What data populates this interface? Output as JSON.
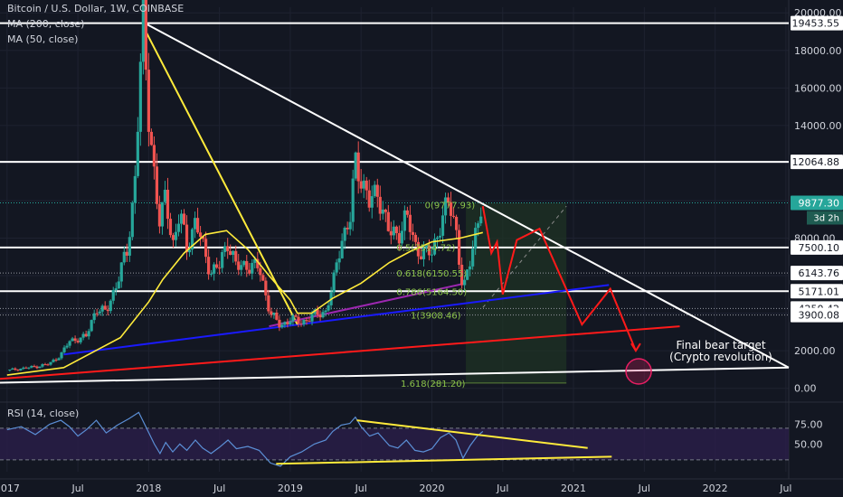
{
  "header": {
    "symbol_line": "Bitcoin / U.S. Dollar, 1W, COINBASE",
    "ma200_label": "MA (200, close)",
    "ma50_label": "MA (50, close)"
  },
  "rsi_panel": {
    "label": "RSI (14, close)",
    "ticks": [
      "75.00",
      "50.00"
    ],
    "tick_values": [
      75,
      50
    ],
    "band": [
      30,
      70
    ]
  },
  "annotation": {
    "line1": "Final bear target",
    "line2": "(Crypto revolution)"
  },
  "colors": {
    "background": "#131722",
    "up": "#26a69a",
    "down": "#ef5350",
    "ma50": "#ffeb3b",
    "resistance": "#ffffff",
    "support_blue": "#1a1aff",
    "support_red": "#ff1a1a",
    "purple": "#9c27b0",
    "rsi_line": "#5b8fd6",
    "rsi_band": "#2a1e4a",
    "projection_box": "#1f3324",
    "fib_text": "#8bc34a"
  },
  "chart_data": {
    "type": "candlestick",
    "title": "Bitcoin / U.S. Dollar, 1W, COINBASE",
    "series_names": [
      "MA (200, close)",
      "MA (50, close)"
    ],
    "y_axis": {
      "ticks": [
        0,
        2000,
        4000,
        6000,
        8000,
        10000,
        12000,
        14000,
        16000,
        18000,
        20000
      ],
      "tick_labels": [
        "0.00",
        "2000.00",
        "",
        "",
        "8000.00",
        "",
        "12000.00",
        "14000.00",
        "16000.00",
        "18000.00",
        "20000.00"
      ],
      "range": [
        -400,
        20300
      ]
    },
    "x_axis": {
      "ticks": [
        2017.0,
        2017.5,
        2018.0,
        2018.5,
        2019.0,
        2019.5,
        2020.0,
        2020.5,
        2021.0,
        2021.5,
        2022.0,
        2022.5
      ],
      "tick_labels": [
        "2017",
        "Jul",
        "2018",
        "Jul",
        "2019",
        "Jul",
        "2020",
        "Jul",
        "2021",
        "Jul",
        "2022",
        "Jul"
      ],
      "range": [
        2016.95,
        2022.52
      ]
    },
    "price_levels": [
      {
        "value": 19453.55,
        "label": "19453.55"
      },
      {
        "value": 12064.88,
        "label": "12064.88"
      },
      {
        "value": 9877.3,
        "label": "9877.30",
        "tag": "3d 2h",
        "current": true
      },
      {
        "value": 7500.1,
        "label": "7500.10"
      },
      {
        "value": 6143.76,
        "label": "6143.76"
      },
      {
        "value": 5171.01,
        "label": "5171.01"
      },
      {
        "value": 4250.42,
        "label": "4250.42"
      },
      {
        "value": 3900.08,
        "label": "3900.08"
      }
    ],
    "fib_labels": [
      {
        "text": "0(9777.93)",
        "price": 9777.93,
        "x": 2019.95
      },
      {
        "text": "0.5(7514.72)",
        "price": 7514.72,
        "x": 2019.75
      },
      {
        "text": "0.618(6150.55)",
        "price": 6150.55,
        "x": 2019.75
      },
      {
        "text": "0.786(5164.50)",
        "price": 5164.5,
        "x": 2019.75
      },
      {
        "text": "1(3908.46)",
        "price": 3908.46,
        "x": 2019.85
      },
      {
        "text": "1.618(281.20)",
        "price": 281.2,
        "x": 2019.78
      }
    ],
    "price_path": [
      [
        2017.0,
        950
      ],
      [
        2017.1,
        1050
      ],
      [
        2017.2,
        1150
      ],
      [
        2017.3,
        1300
      ],
      [
        2017.38,
        1800
      ],
      [
        2017.44,
        2500
      ],
      [
        2017.5,
        2650
      ],
      [
        2017.56,
        2750
      ],
      [
        2017.63,
        4300
      ],
      [
        2017.7,
        4000
      ],
      [
        2017.78,
        5800
      ],
      [
        2017.85,
        7300
      ],
      [
        2017.9,
        10800
      ],
      [
        2017.93,
        15500
      ],
      [
        2017.96,
        19400
      ],
      [
        2018.0,
        14500
      ],
      [
        2018.04,
        11500
      ],
      [
        2018.08,
        8500
      ],
      [
        2018.12,
        10400
      ],
      [
        2018.17,
        7600
      ],
      [
        2018.22,
        9300
      ],
      [
        2018.27,
        7500
      ],
      [
        2018.33,
        8900
      ],
      [
        2018.38,
        7600
      ],
      [
        2018.44,
        6200
      ],
      [
        2018.5,
        6500
      ],
      [
        2018.56,
        7900
      ],
      [
        2018.62,
        6400
      ],
      [
        2018.7,
        6600
      ],
      [
        2018.78,
        6400
      ],
      [
        2018.86,
        4000
      ],
      [
        2018.93,
        3300
      ],
      [
        2019.0,
        3700
      ],
      [
        2019.08,
        3500
      ],
      [
        2019.17,
        3900
      ],
      [
        2019.25,
        4100
      ],
      [
        2019.3,
        5400
      ],
      [
        2019.36,
        8000
      ],
      [
        2019.42,
        8800
      ],
      [
        2019.46,
        12000
      ],
      [
        2019.5,
        11300
      ],
      [
        2019.56,
        9800
      ],
      [
        2019.62,
        10500
      ],
      [
        2019.7,
        8200
      ],
      [
        2019.76,
        8200
      ],
      [
        2019.82,
        9200
      ],
      [
        2019.88,
        7600
      ],
      [
        2019.94,
        7200
      ],
      [
        2020.0,
        7200
      ],
      [
        2020.06,
        8800
      ],
      [
        2020.12,
        9900
      ],
      [
        2020.17,
        8600
      ],
      [
        2020.22,
        5000
      ],
      [
        2020.27,
        6800
      ],
      [
        2020.32,
        8900
      ],
      [
        2020.36,
        9877.3
      ]
    ],
    "ma50_path": [
      [
        2017.0,
        700
      ],
      [
        2017.4,
        1100
      ],
      [
        2017.8,
        2700
      ],
      [
        2018.0,
        4600
      ],
      [
        2018.1,
        5800
      ],
      [
        2018.25,
        7200
      ],
      [
        2018.4,
        8200
      ],
      [
        2018.55,
        8400
      ],
      [
        2018.7,
        7400
      ],
      [
        2018.85,
        6000
      ],
      [
        2019.0,
        4700
      ],
      [
        2019.05,
        4000
      ],
      [
        2019.15,
        4000
      ],
      [
        2019.3,
        4800
      ],
      [
        2019.5,
        5600
      ],
      [
        2019.7,
        6700
      ],
      [
        2019.85,
        7300
      ],
      [
        2020.0,
        7800
      ],
      [
        2020.2,
        8000
      ],
      [
        2020.36,
        8300
      ]
    ],
    "trendlines": [
      {
        "name": "resistance-line",
        "color": "#ffffff",
        "points": [
          [
            2017.96,
            19500
          ],
          [
            2022.52,
            1100
          ]
        ]
      },
      {
        "name": "support-white",
        "color": "#ffffff",
        "points": [
          [
            2016.95,
            300
          ],
          [
            2022.52,
            1100
          ]
        ]
      },
      {
        "name": "support-red",
        "color": "#ff1a1a",
        "points": [
          [
            2016.95,
            500
          ],
          [
            2021.75,
            3300
          ]
        ]
      },
      {
        "name": "support-blue",
        "color": "#1a1aff",
        "points": [
          [
            2017.4,
            1800
          ],
          [
            2021.25,
            5500
          ]
        ]
      },
      {
        "name": "yellow-drop",
        "color": "#ffeb3b",
        "points": [
          [
            2017.96,
            19300
          ],
          [
            2019.05,
            3400
          ]
        ]
      },
      {
        "name": "purple-line",
        "color": "#9c27b0",
        "points": [
          [
            2018.85,
            3300
          ],
          [
            2020.24,
            5600
          ]
        ]
      }
    ],
    "projection": [
      [
        2020.36,
        9700
      ],
      [
        2020.42,
        7200
      ],
      [
        2020.46,
        7800
      ],
      [
        2020.5,
        5000
      ],
      [
        2020.6,
        7900
      ],
      [
        2020.76,
        8500
      ],
      [
        2021.06,
        3400
      ],
      [
        2021.26,
        5300
      ],
      [
        2021.44,
        2000
      ]
    ],
    "target_circle": {
      "x": 2021.46,
      "price": 900
    },
    "rsi_path": [
      [
        2017.0,
        68
      ],
      [
        2017.1,
        72
      ],
      [
        2017.2,
        62
      ],
      [
        2017.3,
        75
      ],
      [
        2017.38,
        80
      ],
      [
        2017.44,
        72
      ],
      [
        2017.5,
        60
      ],
      [
        2017.56,
        68
      ],
      [
        2017.63,
        80
      ],
      [
        2017.7,
        64
      ],
      [
        2017.78,
        74
      ],
      [
        2017.86,
        82
      ],
      [
        2017.93,
        90
      ],
      [
        2017.98,
        72
      ],
      [
        2018.04,
        50
      ],
      [
        2018.08,
        38
      ],
      [
        2018.12,
        52
      ],
      [
        2018.17,
        40
      ],
      [
        2018.22,
        50
      ],
      [
        2018.27,
        42
      ],
      [
        2018.33,
        55
      ],
      [
        2018.38,
        45
      ],
      [
        2018.44,
        38
      ],
      [
        2018.5,
        46
      ],
      [
        2018.56,
        55
      ],
      [
        2018.62,
        44
      ],
      [
        2018.7,
        47
      ],
      [
        2018.78,
        42
      ],
      [
        2018.86,
        26
      ],
      [
        2018.93,
        22
      ],
      [
        2019.0,
        34
      ],
      [
        2019.08,
        40
      ],
      [
        2019.17,
        50
      ],
      [
        2019.25,
        55
      ],
      [
        2019.3,
        66
      ],
      [
        2019.36,
        74
      ],
      [
        2019.42,
        76
      ],
      [
        2019.46,
        84
      ],
      [
        2019.5,
        72
      ],
      [
        2019.56,
        60
      ],
      [
        2019.62,
        64
      ],
      [
        2019.7,
        48
      ],
      [
        2019.76,
        45
      ],
      [
        2019.82,
        55
      ],
      [
        2019.88,
        42
      ],
      [
        2019.94,
        40
      ],
      [
        2020.0,
        44
      ],
      [
        2020.06,
        58
      ],
      [
        2020.12,
        64
      ],
      [
        2020.17,
        55
      ],
      [
        2020.22,
        32
      ],
      [
        2020.27,
        48
      ],
      [
        2020.32,
        60
      ],
      [
        2020.36,
        66
      ]
    ],
    "rsi_trendlines": [
      {
        "name": "rsi-resistance-line",
        "points": [
          [
            2019.47,
            80
          ],
          [
            2021.1,
            45
          ]
        ]
      },
      {
        "name": "rsi-support-line",
        "points": [
          [
            2018.9,
            25
          ],
          [
            2021.27,
            34
          ]
        ]
      }
    ]
  }
}
